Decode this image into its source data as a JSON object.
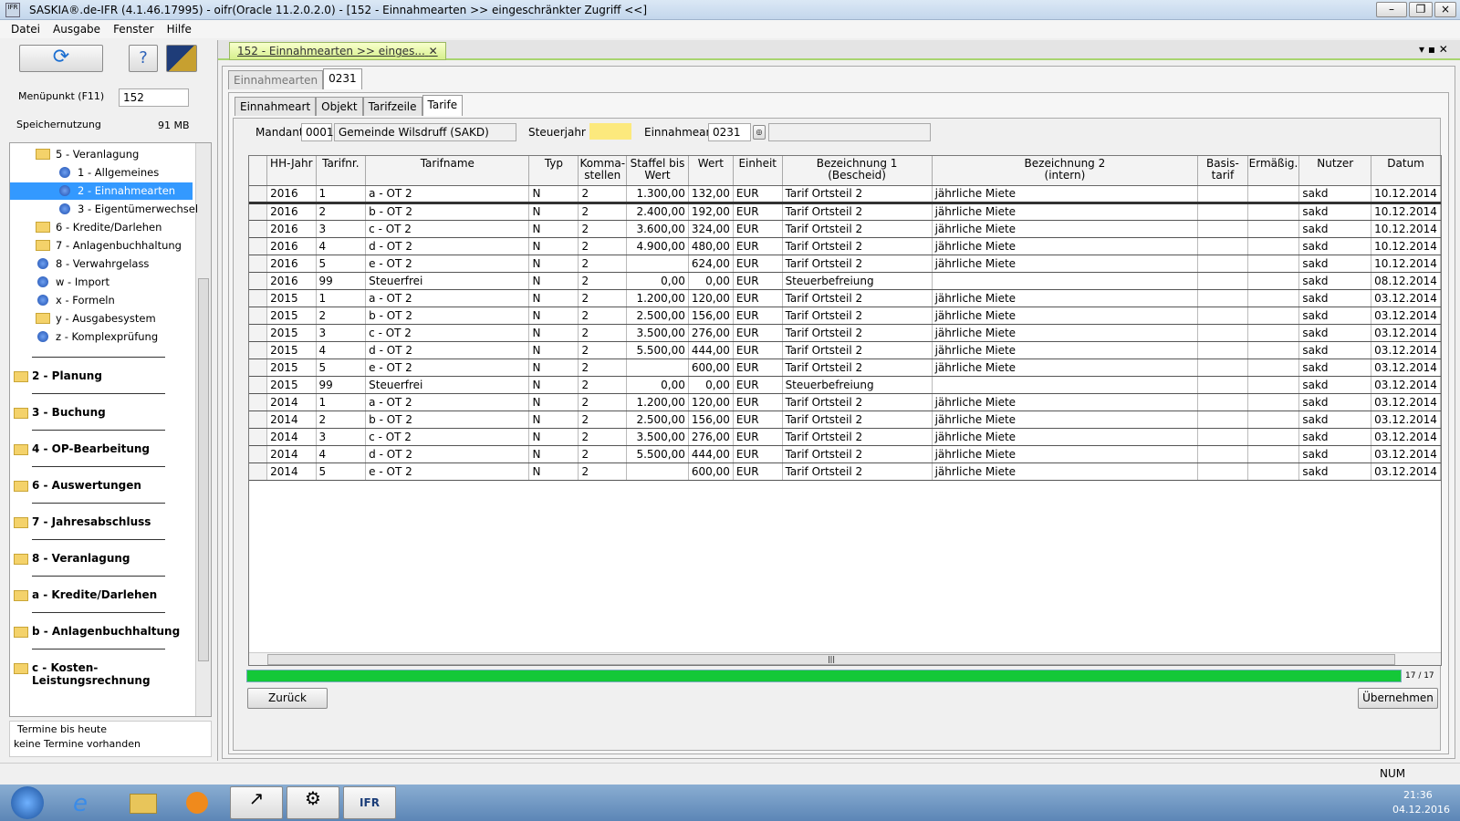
{
  "window": {
    "title": "SASKIA®.de-IFR (4.1.46.17995) - oifr(Oracle 11.2.0.2.0) - [152 - Einnahmearten >> eingeschränkter Zugriff <<]"
  },
  "menu": [
    "Datei",
    "Ausgabe",
    "Fenster",
    "Hilfe"
  ],
  "sidebar": {
    "menupunkt_label": "Menüpunkt (F11)",
    "menupunkt_value": "152",
    "speicher_label": "Speichernutzung",
    "speicher_value": "91 MB",
    "tree": [
      {
        "label": "5 - Veranlagung",
        "icon": "folder",
        "children": [
          {
            "label": "1 - Allgemeines",
            "icon": "dot"
          },
          {
            "label": "2 - Einnahmearten",
            "icon": "dot",
            "selected": true
          },
          {
            "label": "3 - Eigentümerwechsel",
            "icon": "dot"
          }
        ]
      },
      {
        "label": "6 - Kredite/Darlehen",
        "icon": "folder"
      },
      {
        "label": "7 - Anlagenbuchhaltung",
        "icon": "folder"
      },
      {
        "label": "8 - Verwahrgelass",
        "icon": "dot"
      },
      {
        "label": "w - Import",
        "icon": "dot"
      },
      {
        "label": "x - Formeln",
        "icon": "dot"
      },
      {
        "label": "y - Ausgabesystem",
        "icon": "folder"
      },
      {
        "label": "z - Komplexprüfung",
        "icon": "dot"
      }
    ],
    "groups": [
      "2 - Planung",
      "3 - Buchung",
      "4 - OP-Bearbeitung",
      "6 - Auswertungen",
      "7 - Jahresabschluss",
      "8 - Veranlagung",
      "a - Kredite/Darlehen",
      "b - Anlagenbuchhaltung",
      "c - Kosten- Leistungsrechnung"
    ],
    "termine_title": "Termine bis heute",
    "termine_text": "keine Termine vorhanden"
  },
  "doc_tab": "152 - Einnahmearten >>  einges...",
  "outer_tabs": [
    "Einnahmearten",
    "0231"
  ],
  "inner_tabs": [
    "Einnahmeart",
    "Objekt",
    "Tarifzeile",
    "Tarife"
  ],
  "filter": {
    "mandant_label": "Mandant",
    "mandant_code": "0001",
    "mandant_name": "Gemeinde Wilsdruff (SAKD)",
    "steuerjahr_label": "Steuerjahr",
    "einnahmeart_label": "Einnahmeart",
    "einnahmeart_value": "0231"
  },
  "table": {
    "columns": [
      "HH-Jahr",
      "Tarifnr.",
      "Tarifname",
      "Typ",
      "Komma-\nstellen",
      "Staffel bis\nWert",
      "Wert",
      "Einheit",
      "Bezeichnung 1\n(Bescheid)",
      "Bezeichnung 2\n(intern)",
      "Basis-\ntarif",
      "Ermäßig.",
      "Nutzer",
      "Datum"
    ],
    "rows": [
      [
        "2016",
        "1",
        "a - OT 2",
        "N",
        "2",
        "1.300,00",
        "132,00",
        "EUR",
        "Tarif Ortsteil 2",
        "jährliche Miete",
        null,
        null,
        "sakd",
        "10.12.2014"
      ],
      [
        "2016",
        "2",
        "b - OT 2",
        "N",
        "2",
        "2.400,00",
        "192,00",
        "EUR",
        "Tarif Ortsteil 2",
        "jährliche Miete",
        null,
        null,
        "sakd",
        "10.12.2014"
      ],
      [
        "2016",
        "3",
        "c - OT 2",
        "N",
        "2",
        "3.600,00",
        "324,00",
        "EUR",
        "Tarif Ortsteil 2",
        "jährliche Miete",
        null,
        null,
        "sakd",
        "10.12.2014"
      ],
      [
        "2016",
        "4",
        "d - OT 2",
        "N",
        "2",
        "4.900,00",
        "480,00",
        "EUR",
        "Tarif Ortsteil 2",
        "jährliche Miete",
        null,
        null,
        "sakd",
        "10.12.2014"
      ],
      [
        "2016",
        "5",
        "e - OT 2",
        "N",
        "2",
        null,
        "624,00",
        "EUR",
        "Tarif Ortsteil 2",
        "jährliche Miete",
        null,
        null,
        "sakd",
        "10.12.2014"
      ],
      [
        "2016",
        "99",
        "Steuerfrei",
        "N",
        "2",
        "0,00",
        "0,00",
        "EUR",
        "Steuerbefreiung",
        null,
        null,
        null,
        "sakd",
        "08.12.2014"
      ],
      [
        "2015",
        "1",
        "a - OT 2",
        "N",
        "2",
        "1.200,00",
        "120,00",
        "EUR",
        "Tarif Ortsteil 2",
        "jährliche Miete",
        null,
        null,
        "sakd",
        "03.12.2014"
      ],
      [
        "2015",
        "2",
        "b - OT 2",
        "N",
        "2",
        "2.500,00",
        "156,00",
        "EUR",
        "Tarif Ortsteil 2",
        "jährliche Miete",
        null,
        null,
        "sakd",
        "03.12.2014"
      ],
      [
        "2015",
        "3",
        "c - OT 2",
        "N",
        "2",
        "3.500,00",
        "276,00",
        "EUR",
        "Tarif Ortsteil 2",
        "jährliche Miete",
        null,
        null,
        "sakd",
        "03.12.2014"
      ],
      [
        "2015",
        "4",
        "d - OT 2",
        "N",
        "2",
        "5.500,00",
        "444,00",
        "EUR",
        "Tarif Ortsteil 2",
        "jährliche Miete",
        null,
        null,
        "sakd",
        "03.12.2014"
      ],
      [
        "2015",
        "5",
        "e - OT 2",
        "N",
        "2",
        null,
        "600,00",
        "EUR",
        "Tarif Ortsteil 2",
        "jährliche Miete",
        null,
        null,
        "sakd",
        "03.12.2014"
      ],
      [
        "2015",
        "99",
        "Steuerfrei",
        "N",
        "2",
        "0,00",
        "0,00",
        "EUR",
        "Steuerbefreiung",
        null,
        null,
        null,
        "sakd",
        "03.12.2014"
      ],
      [
        "2014",
        "1",
        "a - OT 2",
        "N",
        "2",
        "1.200,00",
        "120,00",
        "EUR",
        "Tarif Ortsteil 2",
        "jährliche Miete",
        null,
        null,
        "sakd",
        "03.12.2014"
      ],
      [
        "2014",
        "2",
        "b - OT 2",
        "N",
        "2",
        "2.500,00",
        "156,00",
        "EUR",
        "Tarif Ortsteil 2",
        "jährliche Miete",
        null,
        null,
        "sakd",
        "03.12.2014"
      ],
      [
        "2014",
        "3",
        "c - OT 2",
        "N",
        "2",
        "3.500,00",
        "276,00",
        "EUR",
        "Tarif Ortsteil 2",
        "jährliche Miete",
        null,
        null,
        "sakd",
        "03.12.2014"
      ],
      [
        "2014",
        "4",
        "d - OT 2",
        "N",
        "2",
        "5.500,00",
        "444,00",
        "EUR",
        "Tarif Ortsteil 2",
        "jährliche Miete",
        null,
        null,
        "sakd",
        "03.12.2014"
      ],
      [
        "2014",
        "5",
        "e - OT 2",
        "N",
        "2",
        null,
        "600,00",
        "EUR",
        "Tarif Ortsteil 2",
        "jährliche Miete",
        null,
        null,
        "sakd",
        "03.12.2014"
      ]
    ]
  },
  "progress_label": "17 / 17",
  "buttons": {
    "back": "Zurück",
    "apply": "Übernehmen"
  },
  "status": "NUM",
  "taskbar": {
    "ifr_label": "IFR",
    "time": "21:36",
    "date": "04.12.2016"
  }
}
